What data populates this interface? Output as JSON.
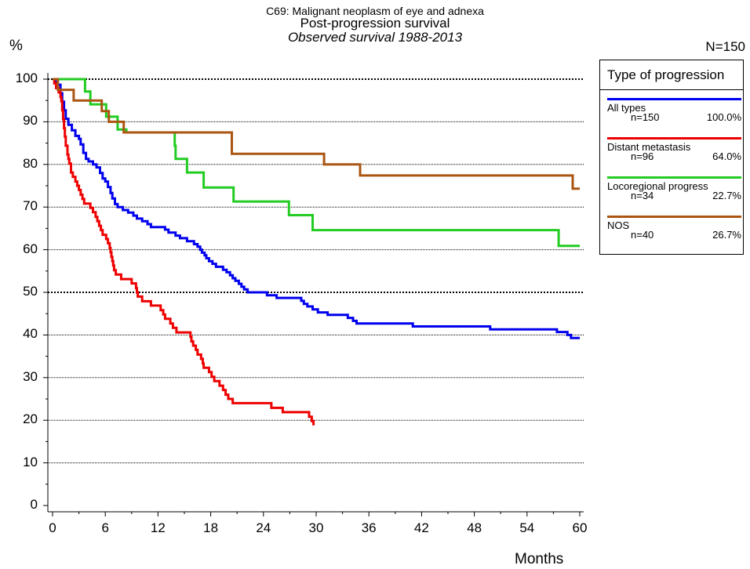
{
  "title": {
    "line1": "C69: Malignant neoplasm of eye and adnexa",
    "line2": "Post-progression survival",
    "line3": "Observed survival 1988-2013"
  },
  "header": {
    "ylabel": "%",
    "n_total": "N=150"
  },
  "legend": {
    "title": "Type of progression",
    "entries": [
      {
        "name": "All types",
        "n": "n=150",
        "pct": "100.0%",
        "color": "#0000ee"
      },
      {
        "name": "Distant metastasis",
        "n": "n=96",
        "pct": "64.0%",
        "color": "#ee0000"
      },
      {
        "name": "Locoregional progress",
        "n": "n=34",
        "pct": "22.7%",
        "color": "#22cc22"
      },
      {
        "name": "NOS",
        "n": "n=40",
        "pct": "26.7%",
        "color": "#aa5511"
      }
    ]
  },
  "chart_data": {
    "type": "line",
    "step": true,
    "title": "C69: Malignant neoplasm of eye and adnexa",
    "subtitle": "Post-progression survival",
    "subtitle2": "Observed survival 1988-2013",
    "xlabel": "Months",
    "ylabel": "%",
    "xlim": [
      0,
      60
    ],
    "ylim": [
      0,
      100
    ],
    "xticks": [
      0,
      6,
      12,
      18,
      24,
      30,
      36,
      42,
      48,
      54,
      60
    ],
    "yticks": [
      0,
      10,
      20,
      30,
      40,
      50,
      60,
      70,
      80,
      90,
      100
    ],
    "grid": "horizontal dotted",
    "legend_position": "top-right",
    "series": [
      {
        "name": "All types",
        "color": "#0000ee",
        "points": [
          [
            0,
            100
          ],
          [
            0.3,
            99.3
          ],
          [
            0.6,
            98.7
          ],
          [
            0.9,
            96.7
          ],
          [
            1.1,
            94.7
          ],
          [
            1.3,
            92.7
          ],
          [
            1.5,
            90.7
          ],
          [
            1.8,
            89.3
          ],
          [
            2.2,
            88
          ],
          [
            2.6,
            86.7
          ],
          [
            3,
            86
          ],
          [
            3.2,
            84.7
          ],
          [
            3.5,
            82.7
          ],
          [
            3.8,
            81.3
          ],
          [
            4.1,
            80.7
          ],
          [
            4.6,
            80
          ],
          [
            5,
            79.3
          ],
          [
            5.4,
            78
          ],
          [
            5.7,
            76.7
          ],
          [
            6,
            76
          ],
          [
            6.3,
            74.7
          ],
          [
            6.6,
            73.3
          ],
          [
            6.8,
            72
          ],
          [
            7.1,
            70.7
          ],
          [
            7.4,
            70
          ],
          [
            8,
            69.3
          ],
          [
            8.6,
            68.7
          ],
          [
            9.2,
            68
          ],
          [
            9.6,
            67.3
          ],
          [
            10.2,
            66.7
          ],
          [
            10.8,
            66
          ],
          [
            11.2,
            65.3
          ],
          [
            12.5,
            65.3
          ],
          [
            12.8,
            64.7
          ],
          [
            13.2,
            64
          ],
          [
            14,
            63.3
          ],
          [
            14.5,
            62.7
          ],
          [
            15.3,
            62
          ],
          [
            16.1,
            61.3
          ],
          [
            16.5,
            60.7
          ],
          [
            16.8,
            60
          ],
          [
            17,
            59.3
          ],
          [
            17.3,
            58.7
          ],
          [
            17.5,
            58
          ],
          [
            17.8,
            57.3
          ],
          [
            18.2,
            56.7
          ],
          [
            18.6,
            56
          ],
          [
            19.4,
            55.3
          ],
          [
            19.8,
            54.7
          ],
          [
            20.2,
            54
          ],
          [
            20.5,
            53.3
          ],
          [
            20.8,
            52.7
          ],
          [
            21.2,
            52
          ],
          [
            21.5,
            51.3
          ],
          [
            21.8,
            50.7
          ],
          [
            22.2,
            50
          ],
          [
            24.4,
            49.3
          ],
          [
            25.5,
            48.7
          ],
          [
            28.3,
            48
          ],
          [
            28.6,
            47.3
          ],
          [
            29,
            46.7
          ],
          [
            29.6,
            46
          ],
          [
            30.2,
            45.3
          ],
          [
            31.3,
            44.7
          ],
          [
            33.6,
            44
          ],
          [
            34.2,
            43.3
          ],
          [
            34.6,
            42.7
          ],
          [
            41,
            42
          ],
          [
            49.8,
            41.3
          ],
          [
            57.4,
            40.7
          ],
          [
            58.6,
            40
          ],
          [
            59,
            39.3
          ],
          [
            60,
            39.3
          ]
        ]
      },
      {
        "name": "Distant metastasis",
        "color": "#ee0000",
        "points": [
          [
            0,
            100
          ],
          [
            0.2,
            99
          ],
          [
            0.4,
            97.9
          ],
          [
            0.7,
            96.9
          ],
          [
            0.9,
            95.8
          ],
          [
            1,
            94.8
          ],
          [
            1.1,
            92.7
          ],
          [
            1.2,
            90.6
          ],
          [
            1.3,
            88.5
          ],
          [
            1.4,
            86.5
          ],
          [
            1.5,
            84.4
          ],
          [
            1.7,
            82.3
          ],
          [
            1.8,
            81.3
          ],
          [
            1.9,
            80.2
          ],
          [
            2.1,
            78.1
          ],
          [
            2.3,
            77.1
          ],
          [
            2.6,
            76
          ],
          [
            2.8,
            75
          ],
          [
            3,
            74
          ],
          [
            3.2,
            72.9
          ],
          [
            3.4,
            71.9
          ],
          [
            3.6,
            70.8
          ],
          [
            4.1,
            70.8
          ],
          [
            4.3,
            69.8
          ],
          [
            4.6,
            68.8
          ],
          [
            4.9,
            67.7
          ],
          [
            5.1,
            66.7
          ],
          [
            5.3,
            65.6
          ],
          [
            5.5,
            64.6
          ],
          [
            5.7,
            63.5
          ],
          [
            6.1,
            62.5
          ],
          [
            6.3,
            61.5
          ],
          [
            6.5,
            60.4
          ],
          [
            6.6,
            59.4
          ],
          [
            6.7,
            58.3
          ],
          [
            6.8,
            57.3
          ],
          [
            6.9,
            56.3
          ],
          [
            7,
            55.2
          ],
          [
            7.2,
            54.2
          ],
          [
            7.8,
            53.1
          ],
          [
            9,
            52.1
          ],
          [
            9.5,
            51
          ],
          [
            9.6,
            50
          ],
          [
            9.7,
            49
          ],
          [
            10.2,
            47.9
          ],
          [
            11.2,
            46.9
          ],
          [
            12.3,
            45.8
          ],
          [
            12.6,
            44.8
          ],
          [
            12.8,
            43.8
          ],
          [
            13.4,
            42.7
          ],
          [
            13.7,
            41.7
          ],
          [
            14.1,
            40.6
          ],
          [
            15.5,
            40.6
          ],
          [
            15.7,
            39.6
          ],
          [
            15.8,
            38.5
          ],
          [
            16,
            37.5
          ],
          [
            16.3,
            36.5
          ],
          [
            16.5,
            35.4
          ],
          [
            16.9,
            34.4
          ],
          [
            17.1,
            33.3
          ],
          [
            17.2,
            32.3
          ],
          [
            17.8,
            31.3
          ],
          [
            18.1,
            30.2
          ],
          [
            18.4,
            29.2
          ],
          [
            19,
            28.1
          ],
          [
            19.4,
            27.1
          ],
          [
            19.7,
            26
          ],
          [
            20,
            25
          ],
          [
            20.5,
            24
          ],
          [
            24.9,
            22.9
          ],
          [
            26.2,
            21.9
          ],
          [
            29.2,
            20.8
          ],
          [
            29.5,
            19.8
          ],
          [
            29.7,
            18.8
          ]
        ]
      },
      {
        "name": "Locoregional progress",
        "color": "#22cc22",
        "points": [
          [
            0,
            100
          ],
          [
            3.6,
            100
          ],
          [
            3.7,
            97.1
          ],
          [
            4.3,
            94.1
          ],
          [
            6.1,
            91.2
          ],
          [
            7.2,
            91.2
          ],
          [
            7.4,
            88.2
          ],
          [
            8.2,
            88.2
          ],
          [
            8.4,
            87.5
          ],
          [
            13.8,
            87.5
          ],
          [
            13.9,
            84.4
          ],
          [
            14,
            81.3
          ],
          [
            15.2,
            81.3
          ],
          [
            15.3,
            78.1
          ],
          [
            17.1,
            78.1
          ],
          [
            17.2,
            74.6
          ],
          [
            20.4,
            74.6
          ],
          [
            20.6,
            71.3
          ],
          [
            26.8,
            71.3
          ],
          [
            26.9,
            68.1
          ],
          [
            29.4,
            68.1
          ],
          [
            29.6,
            64.6
          ],
          [
            54.5,
            64.6
          ],
          [
            57.4,
            64.6
          ],
          [
            57.6,
            60.9
          ],
          [
            60,
            60.9
          ]
        ]
      },
      {
        "name": "NOS",
        "color": "#aa5511",
        "points": [
          [
            0,
            100
          ],
          [
            0.4,
            100
          ],
          [
            0.6,
            97.5
          ],
          [
            2.3,
            97.5
          ],
          [
            2.4,
            95
          ],
          [
            5.5,
            95
          ],
          [
            5.6,
            92.5
          ],
          [
            6.3,
            92.5
          ],
          [
            6.4,
            90
          ],
          [
            8,
            90
          ],
          [
            8.1,
            87.5
          ],
          [
            20.2,
            87.5
          ],
          [
            20.4,
            82.5
          ],
          [
            30.8,
            82.5
          ],
          [
            30.9,
            80
          ],
          [
            34.8,
            80
          ],
          [
            35,
            77.4
          ],
          [
            59,
            77.4
          ],
          [
            59.2,
            74.3
          ],
          [
            60,
            74.3
          ]
        ]
      }
    ]
  }
}
